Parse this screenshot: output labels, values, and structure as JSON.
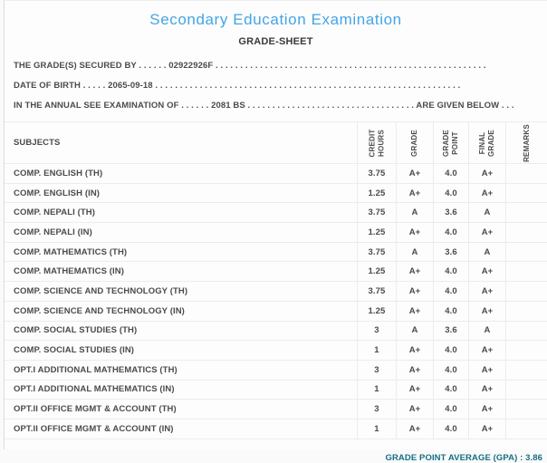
{
  "page": {
    "title": "Secondary Education Examination",
    "subtitle": "GRADE-SHEET"
  },
  "info_lines": [
    "THE GRADE(S) SECURED BY . . . . . . 02922926F . . . . . . . . . . . . . . . . . . . . . . . . . . . . . . . . . . . . . . . . . . . . . . . . . . . . . . .",
    "DATE OF BIRTH . . . . . 2065-09-18 . . . . . . . . . . . . . . . . . . . . . . . . . . . . . . . . . . . . . . . . . . . . . . . . . . . . . . . . . . . . . .",
    "IN THE ANNUAL SEE EXAMINATION OF . . . . . . 2081 BS . . . . . . . . . . . . . . . . . . . . . . . . . . . . . . . . . . ARE GIVEN BELOW . . ."
  ],
  "table": {
    "subjects_header": "SUBJECTS",
    "columns": [
      {
        "id": "credit-hours",
        "label": "CREDIT\nHOURS"
      },
      {
        "id": "grade",
        "label": "GRADE"
      },
      {
        "id": "grade-point",
        "label": "GRADE\nPOINT"
      },
      {
        "id": "final-grade",
        "label": "FINAL\nGRADE"
      },
      {
        "id": "remarks",
        "label": "REMARKS"
      }
    ],
    "rows": [
      {
        "subject": "COMP. ENGLISH (TH)",
        "credit_hours": "3.75",
        "grade": "A+",
        "grade_point": "4.0",
        "final_grade": "A+",
        "remarks": ""
      },
      {
        "subject": "COMP. ENGLISH (IN)",
        "credit_hours": "1.25",
        "grade": "A+",
        "grade_point": "4.0",
        "final_grade": "A+",
        "remarks": ""
      },
      {
        "subject": "COMP. NEPALI (TH)",
        "credit_hours": "3.75",
        "grade": "A",
        "grade_point": "3.6",
        "final_grade": "A",
        "remarks": ""
      },
      {
        "subject": "COMP. NEPALI (IN)",
        "credit_hours": "1.25",
        "grade": "A+",
        "grade_point": "4.0",
        "final_grade": "A+",
        "remarks": ""
      },
      {
        "subject": "COMP. MATHEMATICS (TH)",
        "credit_hours": "3.75",
        "grade": "A",
        "grade_point": "3.6",
        "final_grade": "A",
        "remarks": ""
      },
      {
        "subject": "COMP. MATHEMATICS (IN)",
        "credit_hours": "1.25",
        "grade": "A+",
        "grade_point": "4.0",
        "final_grade": "A+",
        "remarks": ""
      },
      {
        "subject": "COMP. SCIENCE AND TECHNOLOGY (TH)",
        "credit_hours": "3.75",
        "grade": "A+",
        "grade_point": "4.0",
        "final_grade": "A+",
        "remarks": ""
      },
      {
        "subject": "COMP. SCIENCE AND TECHNOLOGY (IN)",
        "credit_hours": "1.25",
        "grade": "A+",
        "grade_point": "4.0",
        "final_grade": "A+",
        "remarks": ""
      },
      {
        "subject": "COMP. SOCIAL STUDIES (TH)",
        "credit_hours": "3",
        "grade": "A",
        "grade_point": "3.6",
        "final_grade": "A",
        "remarks": ""
      },
      {
        "subject": "COMP. SOCIAL STUDIES (IN)",
        "credit_hours": "1",
        "grade": "A+",
        "grade_point": "4.0",
        "final_grade": "A+",
        "remarks": ""
      },
      {
        "subject": "OPT.I ADDITIONAL MATHEMATICS (TH)",
        "credit_hours": "3",
        "grade": "A+",
        "grade_point": "4.0",
        "final_grade": "A+",
        "remarks": ""
      },
      {
        "subject": "OPT.I ADDITIONAL MATHEMATICS (IN)",
        "credit_hours": "1",
        "grade": "A+",
        "grade_point": "4.0",
        "final_grade": "A+",
        "remarks": ""
      },
      {
        "subject": "OPT.II OFFICE MGMT & ACCOUNT (TH)",
        "credit_hours": "3",
        "grade": "A+",
        "grade_point": "4.0",
        "final_grade": "A+",
        "remarks": ""
      },
      {
        "subject": "OPT.II OFFICE MGMT & ACCOUNT (IN)",
        "credit_hours": "1",
        "grade": "A+",
        "grade_point": "4.0",
        "final_grade": "A+",
        "remarks": ""
      }
    ]
  },
  "footer": {
    "gpa_label": "GRADE POINT AVERAGE (GPA) :",
    "gpa_value": "3.86"
  },
  "colors": {
    "title_accent": "#45a4e6",
    "body_text": "#4b4b4b",
    "gpa_text": "#156f85",
    "table_border": "#ececec"
  }
}
